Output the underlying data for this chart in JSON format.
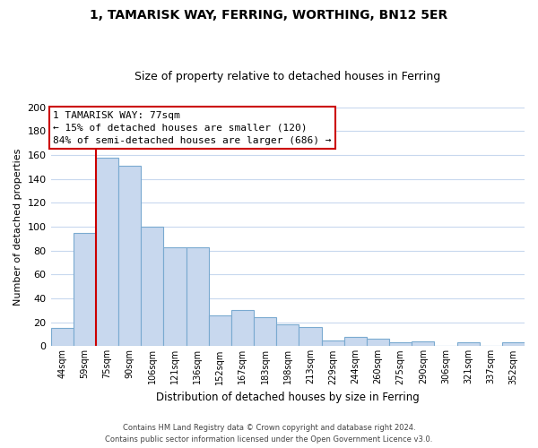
{
  "title": "1, TAMARISK WAY, FERRING, WORTHING, BN12 5ER",
  "subtitle": "Size of property relative to detached houses in Ferring",
  "xlabel": "Distribution of detached houses by size in Ferring",
  "ylabel": "Number of detached properties",
  "categories": [
    "44sqm",
    "59sqm",
    "75sqm",
    "90sqm",
    "106sqm",
    "121sqm",
    "136sqm",
    "152sqm",
    "167sqm",
    "183sqm",
    "198sqm",
    "213sqm",
    "229sqm",
    "244sqm",
    "260sqm",
    "275sqm",
    "290sqm",
    "306sqm",
    "321sqm",
    "337sqm",
    "352sqm"
  ],
  "values": [
    15,
    95,
    158,
    151,
    100,
    83,
    83,
    26,
    30,
    24,
    18,
    16,
    5,
    8,
    6,
    3,
    4,
    0,
    3,
    0,
    3
  ],
  "bar_color": "#c8d8ee",
  "bar_edge_color": "#7aaad0",
  "highlight_color": "#cc0000",
  "annotation_title": "1 TAMARISK WAY: 77sqm",
  "annotation_line1": "← 15% of detached houses are smaller (120)",
  "annotation_line2": "84% of semi-detached houses are larger (686) →",
  "annotation_box_color": "#ffffff",
  "annotation_box_edge": "#cc0000",
  "ylim": [
    0,
    200
  ],
  "yticks": [
    0,
    20,
    40,
    60,
    80,
    100,
    120,
    140,
    160,
    180,
    200
  ],
  "footer_line1": "Contains HM Land Registry data © Crown copyright and database right 2024.",
  "footer_line2": "Contains public sector information licensed under the Open Government Licence v3.0.",
  "background_color": "#ffffff",
  "grid_color": "#c8d8ee"
}
